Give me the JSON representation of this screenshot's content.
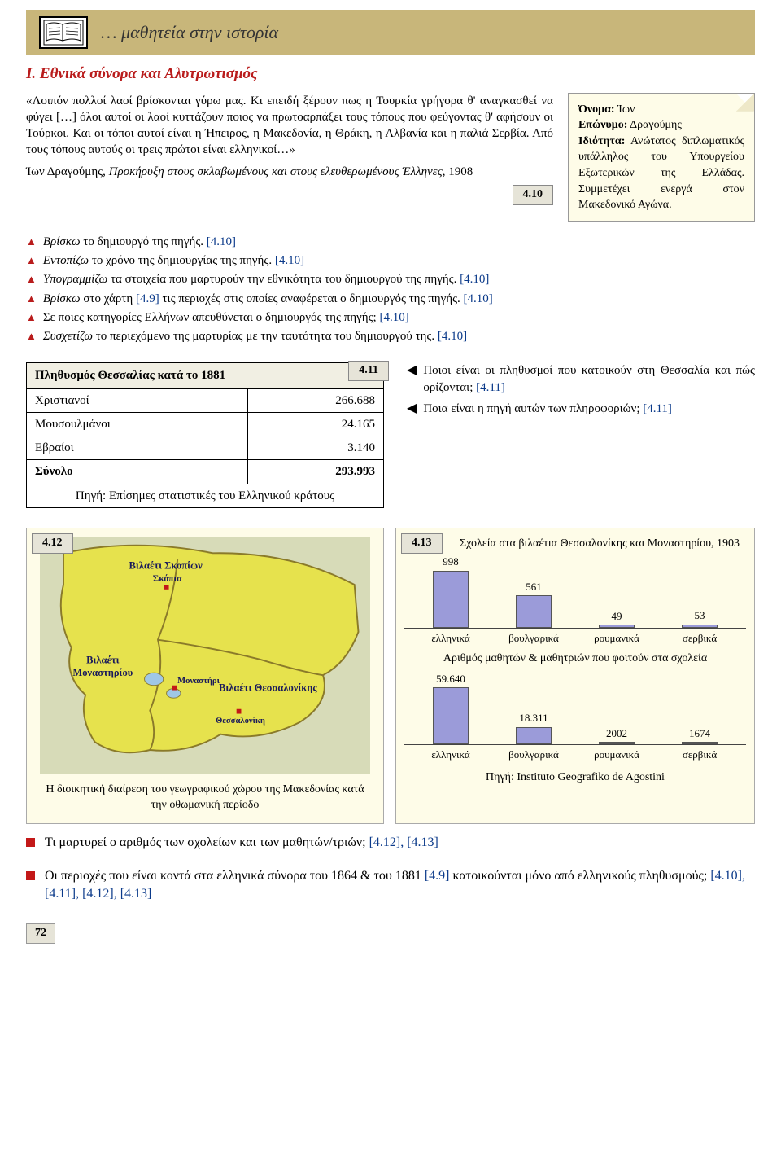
{
  "banner": {
    "title": "… μαθητεία στην ιστορία"
  },
  "section_heading": "Ι. Εθνικά σύνορα και Αλυτρωτισμός",
  "quote": {
    "body": "«Λοιπόν πολλοί λαοί βρίσκονται γύρω μας. Κι επειδή ξέρουν πως η Τουρκία γρήγορα θ' αναγκασθεί να φύγει […] όλοι αυτοί οι λαοί κυττάζουν ποιος να πρωτοαρπάξει τους τόπους που φεύγοντας θ' αφήσουν οι Τούρκοι. Και οι τόποι αυτοί είναι η Ήπειρος, η Μακεδονία, η Θράκη, η Αλβανία και η παλιά Σερβία. Από τους τόπους αυτούς οι τρεις πρώτοι είναι ελληνικοί…»",
    "author_line": "Ίων Δραγούμης, ",
    "work_italic": "Προκήρυξη στους σκλαβωμένους και στους ελευθερωμένους Έλληνες",
    "year": ", 1908"
  },
  "tag_410": "4.10",
  "idcard": {
    "name_label": "Όνομα:",
    "name": " Ίων",
    "surname_label": "Επώνυμο:",
    "surname": " Δραγούμης",
    "role_label": "Ιδιότητα:",
    "role_text": " Ανώτατος διπλωματικός υπάλληλος του Υπουργείου Εξωτερικών της Ελλάδας. Συμμετέχει ενεργά στον Μακεδονικό Αγώνα."
  },
  "bullets": [
    {
      "italic": "Βρίσκω",
      "rest": " το δημιουργό της πηγής. ",
      "ref": "[4.10]"
    },
    {
      "italic": "Εντοπίζω",
      "rest": " το χρόνο της δημιουργίας της πηγής. ",
      "ref": "[4.10]"
    },
    {
      "italic": "Υπογραμμίζω",
      "rest": " τα στοιχεία που μαρτυρούν την εθνικότητα του δημιουργού της πηγής. ",
      "ref": "[4.10]"
    },
    {
      "italic": "Βρίσκω",
      "rest_pre": " στο χάρτη ",
      "ref_pre": "[4.9]",
      "rest": " τις περιοχές στις οποίες αναφέρεται ο δημιουργός της πηγής. ",
      "ref": "[4.10]"
    },
    {
      "plain": "Σε ποιες κατηγορίες Ελλήνων απευθύνεται ο δημιουργός της πηγής; ",
      "ref": "[4.10]"
    },
    {
      "italic": "Συσχετίζω",
      "rest": " το περιεχόμενο της μαρτυρίας με την ταυτότητα του δημιουργού της. ",
      "ref": "[4.10]"
    }
  ],
  "table": {
    "tag": "4.11",
    "title": "Πληθυσμός Θεσσαλίας κατά το 1881",
    "rows": [
      {
        "label": "Χριστιανοί",
        "value": "266.688"
      },
      {
        "label": "Μουσουλμάνοι",
        "value": "24.165"
      },
      {
        "label": "Εβραίοι",
        "value": "3.140"
      }
    ],
    "total_label": "Σύνολο",
    "total_value": "293.993",
    "caption": "Πηγή: Επίσημες στατιστικές του Ελληνικού κράτους"
  },
  "mid_right": [
    {
      "text": "Ποιοι είναι οι πληθυσμοί που κατοικούν στη Θεσσαλία και πώς ορίζονται; ",
      "ref": "[4.11]"
    },
    {
      "text": "Ποια είναι η πηγή αυτών των πληροφοριών; ",
      "ref": "[4.11]"
    }
  ],
  "map": {
    "tag": "4.12",
    "labels": {
      "skopje_v": "Βιλαέτι Σκοπίων",
      "skopje": "Σκόπια",
      "monastir_v": "Βιλαέτι Μοναστηρίου",
      "monastir": "Μοναστήρι",
      "thess_v": "Βιλαέτι Θεσσαλονίκης",
      "thess": "Θεσσαλονίκη"
    },
    "colors": {
      "land": "#e6e24d",
      "sea": "#d7dbb8",
      "border": "#8a7a2a",
      "lake": "#9fc7e6",
      "city": "#c31818"
    },
    "caption": "Η διοικητική διαίρεση του γεωγραφικού χώρου της Μακεδονίας κατά την οθωμανική περίοδο"
  },
  "chart": {
    "tag": "4.13",
    "title": "Σχολεία στα βιλαέτια Θεσσαλονίκης και Μοναστηρίου, 1903",
    "top": {
      "max": 998,
      "bars": [
        {
          "label": "ελληνικά",
          "value": 998
        },
        {
          "label": "βουλγαρικά",
          "value": 561
        },
        {
          "label": "ρουμανικά",
          "value": 49
        },
        {
          "label": "σερβικά",
          "value": 53
        }
      ]
    },
    "subtitle": "Αριθμός μαθητών & μαθητριών που φοιτούν στα σχολεία",
    "bottom": {
      "max": 59640,
      "bars": [
        {
          "label": "ελληνικά",
          "value": 59640,
          "display": "59.640"
        },
        {
          "label": "βουλγαρικά",
          "value": 18311,
          "display": "18.311"
        },
        {
          "label": "ρουμανικά",
          "value": 2002,
          "display": "2002"
        },
        {
          "label": "σερβικά",
          "value": 1674,
          "display": "1674"
        }
      ]
    },
    "bar_color": "#9b9bd9",
    "source": "Πηγή: Instituto Geografiko de Agostini"
  },
  "q1": {
    "text": "Τι μαρτυρεί ο αριθμός των σχολείων και των μαθητών/τριών; ",
    "refs": "[4.12], [4.13]"
  },
  "q2": {
    "pre": "Οι περιοχές που είναι κοντά στα ελληνικά σύνορα του 1864 & του 1881 ",
    "ref1": "[4.9]",
    "mid": " κατοικούνται μόνο από ελληνικούς πληθυσμούς; ",
    "refs": "[4.10], [4.11], [4.12], [4.13]"
  },
  "page_number": "72"
}
